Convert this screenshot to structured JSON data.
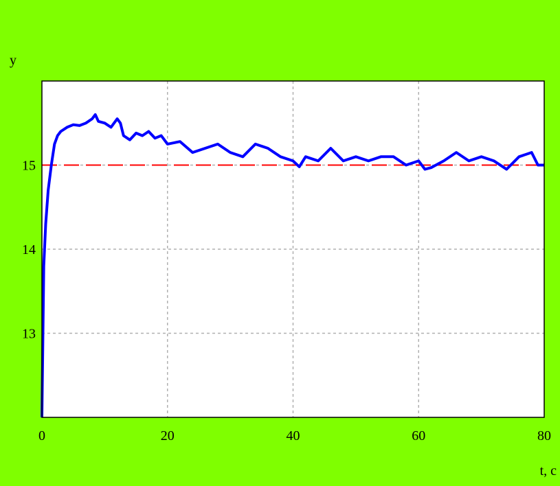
{
  "colors": {
    "background": "#7FFF00",
    "plot_area": "#FFFFFF",
    "grid": "#B0B0B0",
    "series": "#0000FF",
    "reference": "#FF0000"
  },
  "chart_data": {
    "type": "line",
    "title": "",
    "xlabel": "t, c",
    "ylabel": "y",
    "xlim": [
      0,
      80
    ],
    "ylim": [
      12,
      16
    ],
    "x_ticks": [
      0,
      20,
      40,
      60,
      80
    ],
    "y_ticks": [
      13,
      14,
      15
    ],
    "grid": true,
    "series": [
      {
        "x": [
          0,
          0.3,
          0.6,
          1,
          1.5,
          2,
          2.5,
          3,
          4,
          5,
          6,
          7,
          8,
          8.5,
          9,
          10,
          11,
          12,
          12.5,
          13,
          14,
          15,
          16,
          17,
          18,
          19,
          20,
          22,
          24,
          26,
          28,
          30,
          32,
          34,
          36,
          38,
          40,
          41,
          42,
          44,
          46,
          48,
          50,
          52,
          54,
          56,
          58,
          60,
          61,
          62,
          64,
          66,
          68,
          70,
          72,
          74,
          76,
          78,
          79,
          80
        ],
        "y": [
          12.0,
          13.8,
          14.3,
          14.7,
          15.0,
          15.25,
          15.35,
          15.4,
          15.45,
          15.48,
          15.47,
          15.5,
          15.55,
          15.6,
          15.52,
          15.5,
          15.45,
          15.55,
          15.5,
          15.35,
          15.3,
          15.38,
          15.35,
          15.4,
          15.32,
          15.35,
          15.25,
          15.28,
          15.15,
          15.2,
          15.25,
          15.15,
          15.1,
          15.25,
          15.2,
          15.1,
          15.05,
          14.98,
          15.1,
          15.05,
          15.2,
          15.05,
          15.1,
          15.05,
          15.1,
          15.1,
          15.0,
          15.05,
          14.95,
          14.97,
          15.05,
          15.15,
          15.05,
          15.1,
          15.05,
          14.95,
          15.1,
          15.15,
          15.0,
          15.0
        ]
      }
    ],
    "reference_line": {
      "y": 15,
      "style": "dashed"
    }
  }
}
